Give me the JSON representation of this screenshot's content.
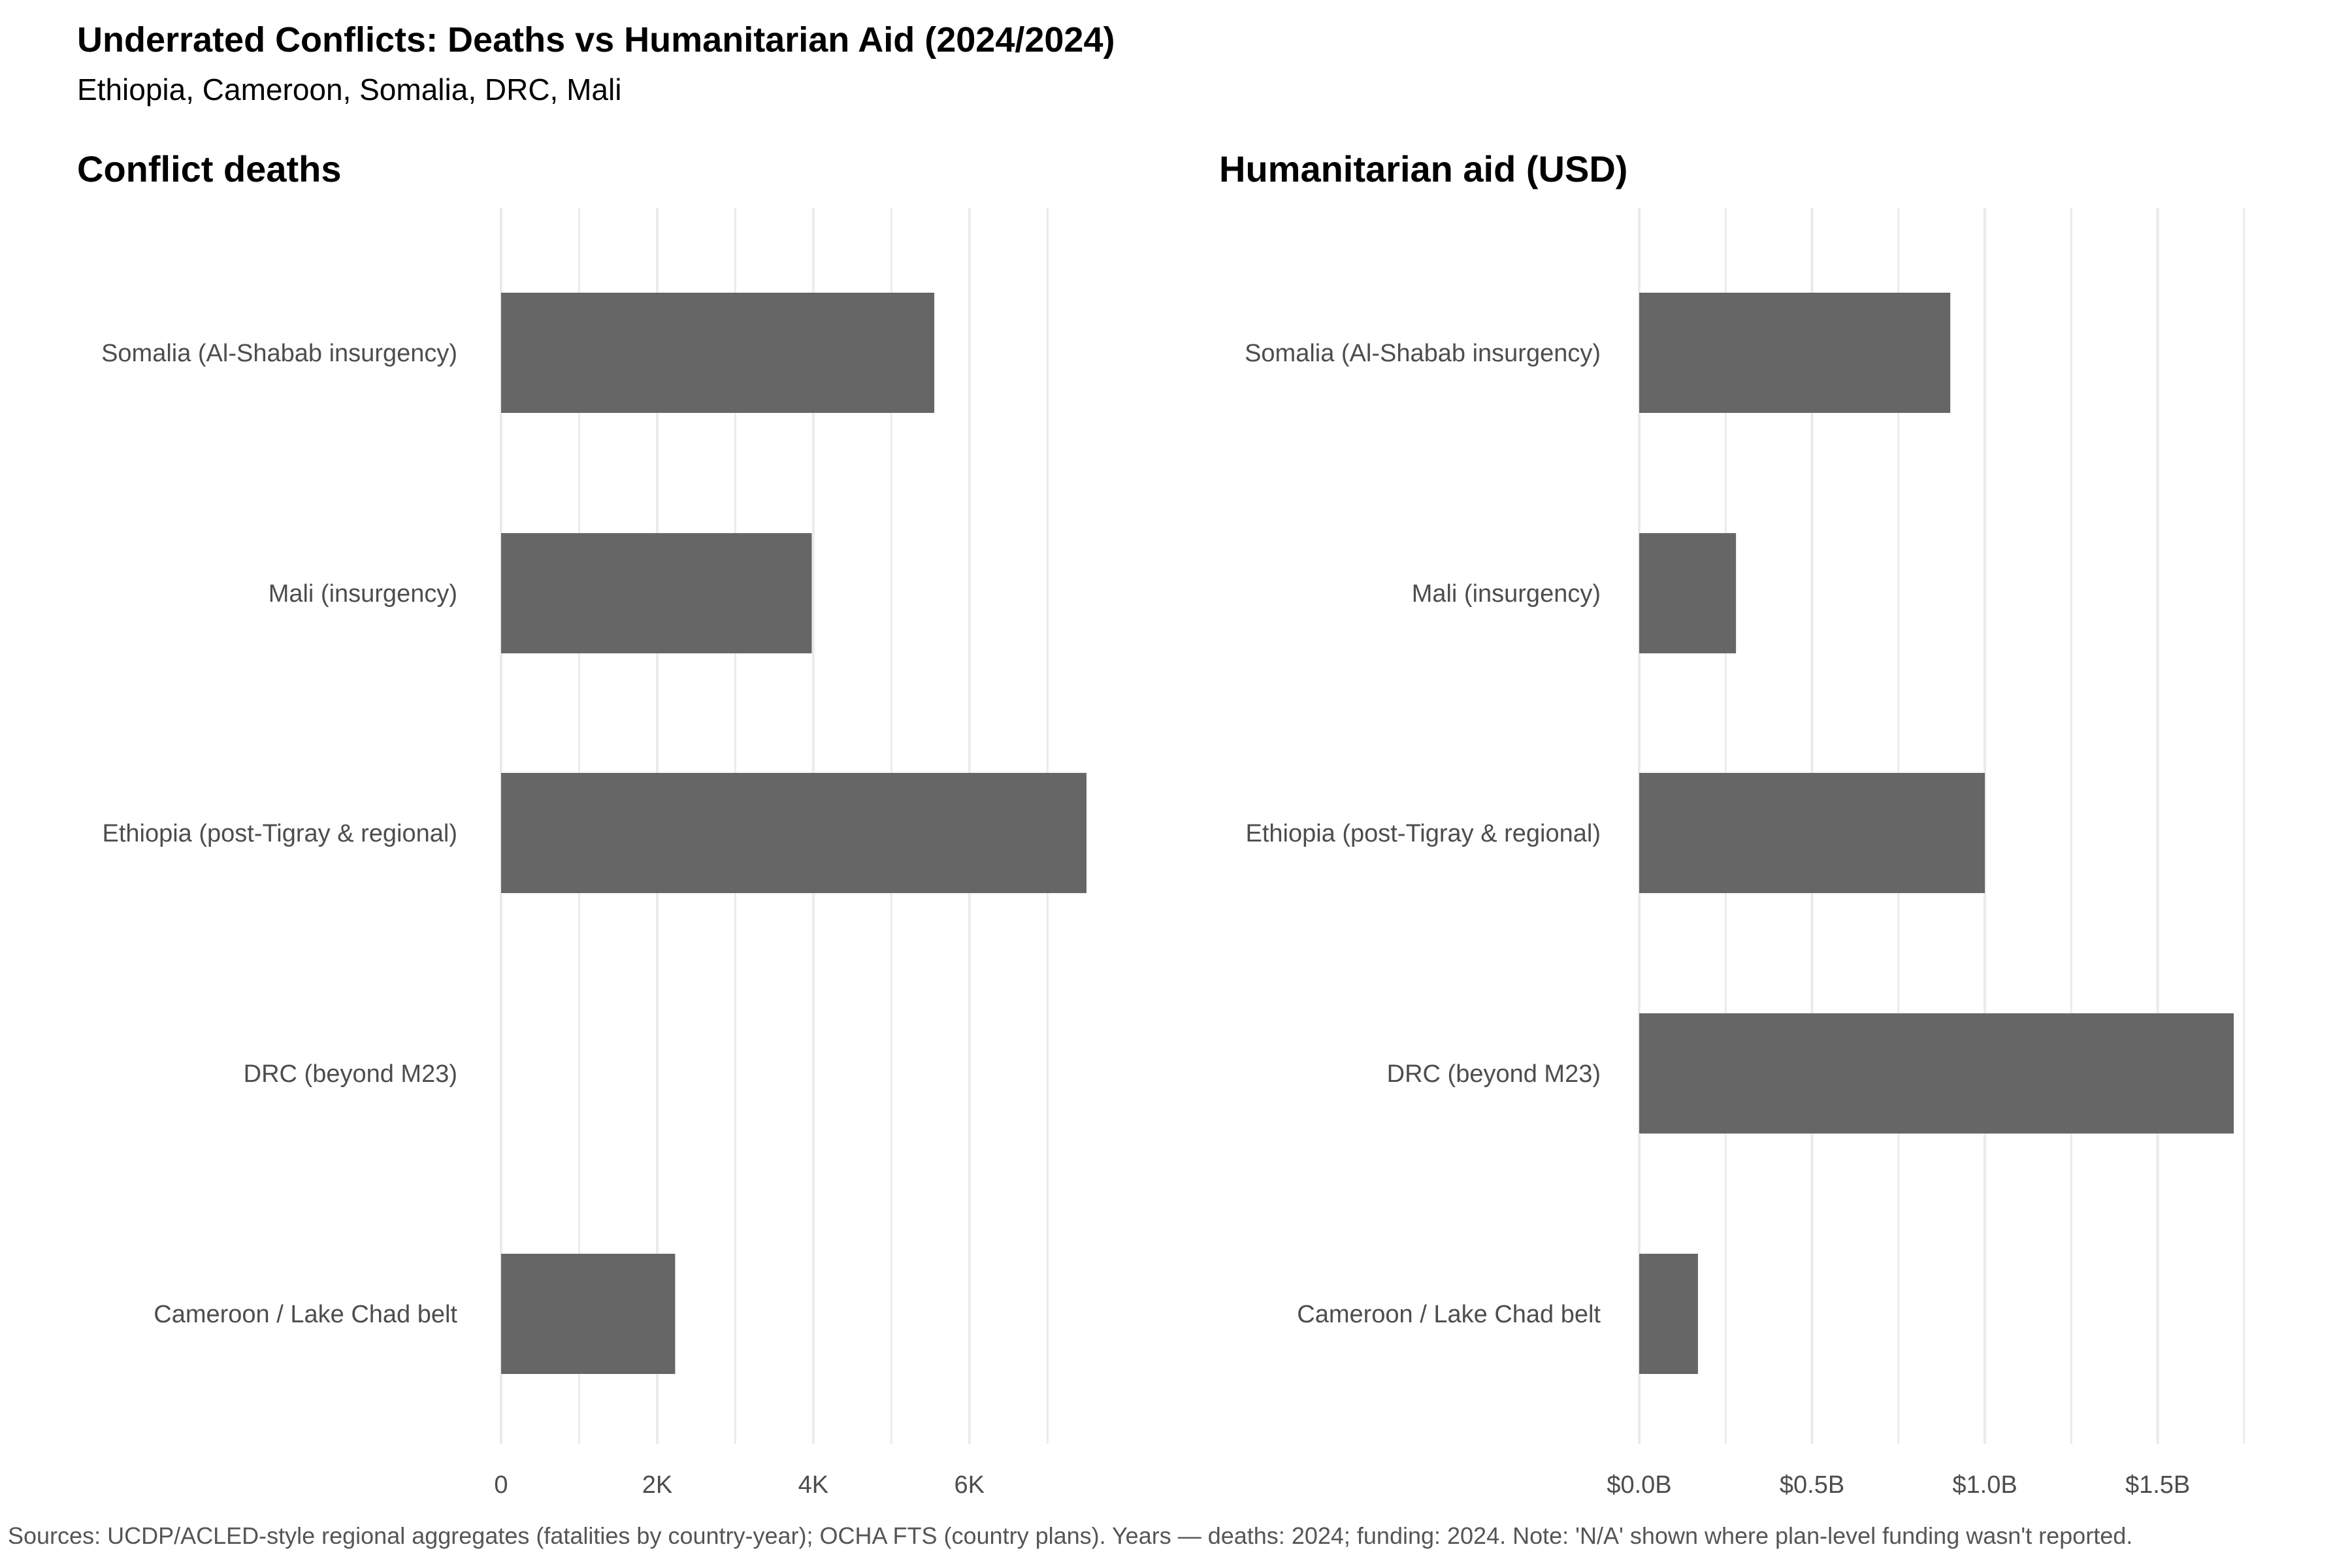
{
  "title": "Underrated Conflicts: Deaths vs Humanitarian Aid (2024/2024)",
  "subtitle": "Ethiopia, Cameroon, Somalia, DRC, Mali",
  "caption": "Sources: UCDP/ACLED-style regional aggregates (fatalities by country-year); OCHA FTS (country plans). Years — deaths: 2024; funding: 2024. Note: 'N/A' shown where plan-level funding wasn't reported.",
  "colors": {
    "bar": "#666666",
    "grid": "#ebebeb"
  },
  "chart_data": [
    {
      "type": "bar",
      "orientation": "horizontal",
      "title": "Conflict deaths",
      "categories": [
        "Somalia (Al-Shabab insurgency)",
        "Mali (insurgency)",
        "Ethiopia (post-Tigray & regional)",
        "DRC (beyond M23)",
        "Cameroon / Lake Chad belt"
      ],
      "values": [
        5550,
        3980,
        7500,
        null,
        2230
      ],
      "xlim": [
        0,
        7500
      ],
      "ticks": [
        0,
        2000,
        4000,
        6000
      ],
      "tick_labels": [
        "0",
        "2K",
        "4K",
        "6K"
      ],
      "grid": true
    },
    {
      "type": "bar",
      "orientation": "horizontal",
      "title": "Humanitarian aid (USD)",
      "categories": [
        "Somalia (Al-Shabab insurgency)",
        "Mali (insurgency)",
        "Ethiopia (post-Tigray & regional)",
        "DRC (beyond M23)",
        "Cameroon / Lake Chad belt"
      ],
      "values": [
        0.9,
        0.28,
        1.0,
        1.72,
        0.17
      ],
      "xlim": [
        0,
        1.75
      ],
      "ticks": [
        0,
        0.5,
        1.0,
        1.5
      ],
      "tick_labels": [
        "$0.0B",
        "$0.5B",
        "$1.0B",
        "$1.5B"
      ],
      "grid": true
    }
  ]
}
